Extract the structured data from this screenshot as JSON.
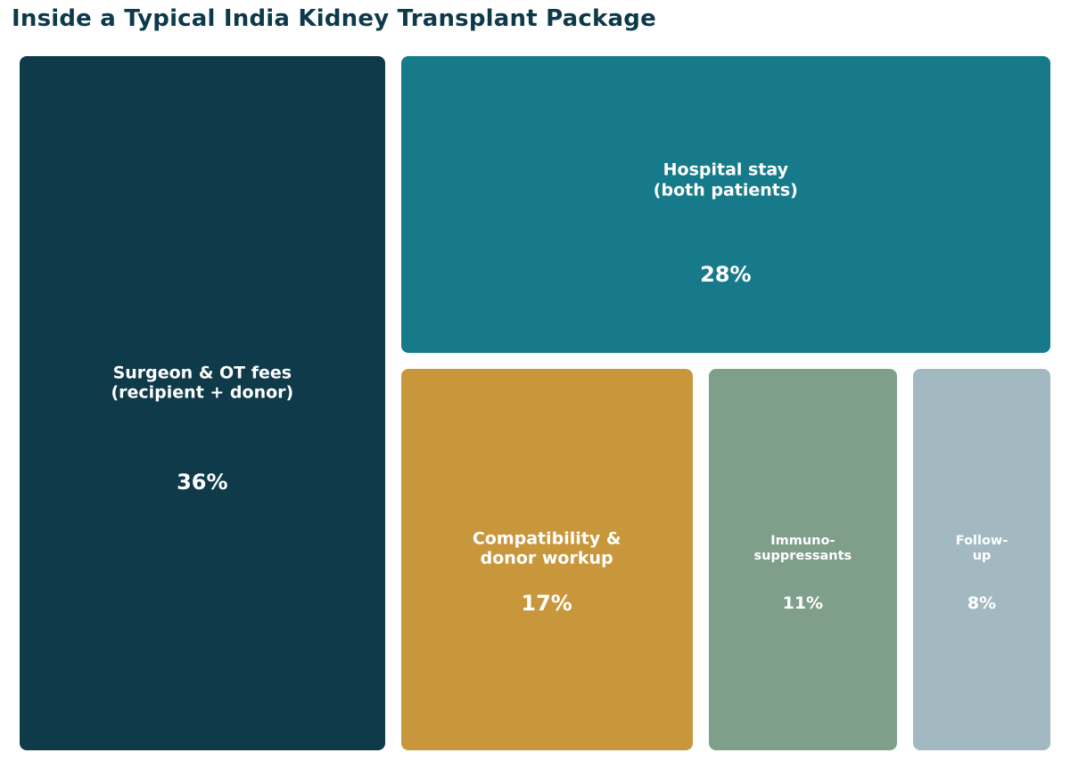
{
  "chart_data": {
    "type": "treemap",
    "title": "Inside a Typical India Kidney Transplant Package",
    "unit": "%",
    "items": [
      {
        "label": "Surgeon & OT fees\n(recipient + donor)",
        "value": 36,
        "value_label": "36%",
        "color": "#0e3a4a"
      },
      {
        "label": "Hospital stay\n(both patients)",
        "value": 28,
        "value_label": "28%",
        "color": "#167a8a"
      },
      {
        "label": "Compatibility &\ndonor workup",
        "value": 17,
        "value_label": "17%",
        "color": "#c9973b"
      },
      {
        "label": "Immuno-\nsuppressants",
        "value": 11,
        "value_label": "11%",
        "color": "#7f9f8b"
      },
      {
        "label": "Follow-\nup",
        "value": 8,
        "value_label": "8%",
        "color": "#a3b9c2"
      }
    ]
  }
}
